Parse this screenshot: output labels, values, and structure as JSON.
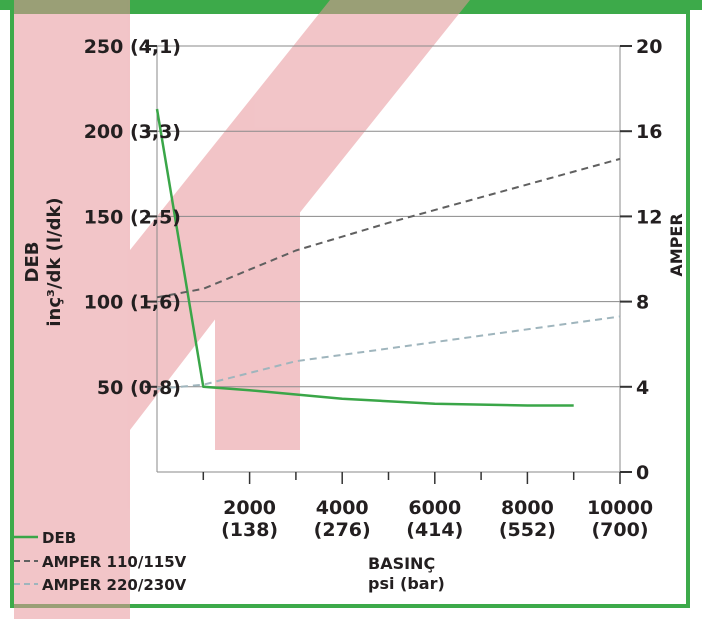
{
  "chart_data": {
    "type": "line",
    "colors": {
      "flow": "#3aa648",
      "amp_low": "#606060",
      "amp_high": "#9fb5bd",
      "frame": "#3daa4a",
      "watermark": "#e8959a"
    },
    "left_axis": {
      "label_line1": "DEB",
      "label_line2": "inç³/dk (l/dk)",
      "ylim": [
        0,
        250
      ],
      "ticks": [
        {
          "value": 50,
          "label": "50 (0,8)"
        },
        {
          "value": 100,
          "label": "100 (1,6)"
        },
        {
          "value": 150,
          "label": "150 (2,5)"
        },
        {
          "value": 200,
          "label": "200 (3,3)"
        },
        {
          "value": 250,
          "label": "250 (4,1)"
        }
      ]
    },
    "right_axis": {
      "label": "AMPER",
      "ylim": [
        0,
        20
      ],
      "ticks": [
        {
          "value": 0,
          "label": "0"
        },
        {
          "value": 4,
          "label": "4"
        },
        {
          "value": 8,
          "label": "8"
        },
        {
          "value": 12,
          "label": "12"
        },
        {
          "value": 16,
          "label": "16"
        },
        {
          "value": 20,
          "label": "20"
        }
      ]
    },
    "x_axis": {
      "label_line1": "BASINÇ",
      "label_line2": "psi (bar)",
      "xlim": [
        0,
        10000
      ],
      "ticks": [
        {
          "value": 2000,
          "line1": "2000",
          "line2": "(138)"
        },
        {
          "value": 4000,
          "line1": "4000",
          "line2": "(276)"
        },
        {
          "value": 6000,
          "line1": "6000",
          "line2": "(414)"
        },
        {
          "value": 8000,
          "line1": "8000",
          "line2": "(552)"
        },
        {
          "value": 10000,
          "line1": "10000",
          "line2": "(700)"
        }
      ],
      "minor_ticks": [
        1000,
        3000,
        5000,
        7000,
        9000
      ]
    },
    "grid": true,
    "legend_position": "bottom-left",
    "series": [
      {
        "name": "DEB",
        "axis": "left",
        "style": "solid",
        "points": [
          [
            0,
            213
          ],
          [
            1000,
            50
          ],
          [
            2000,
            48
          ],
          [
            4000,
            43
          ],
          [
            6000,
            40
          ],
          [
            8000,
            39
          ],
          [
            9000,
            39
          ]
        ]
      },
      {
        "name": "AMPER 110/115V",
        "axis": "right",
        "style": "dashed",
        "points": [
          [
            0,
            8.2
          ],
          [
            1000,
            8.6
          ],
          [
            2000,
            9.5
          ],
          [
            3000,
            10.4
          ],
          [
            5000,
            11.7
          ],
          [
            10000,
            14.7
          ]
        ]
      },
      {
        "name": "AMPER 220/230V",
        "axis": "right",
        "style": "dashed",
        "points": [
          [
            0,
            3.9
          ],
          [
            1000,
            4.1
          ],
          [
            3000,
            5.2
          ],
          [
            5000,
            5.8
          ],
          [
            10000,
            7.3
          ]
        ]
      }
    ]
  },
  "legend": [
    {
      "label": "DEB"
    },
    {
      "label": "AMPER 110/115V"
    },
    {
      "label": "AMPER 220/230V"
    }
  ]
}
